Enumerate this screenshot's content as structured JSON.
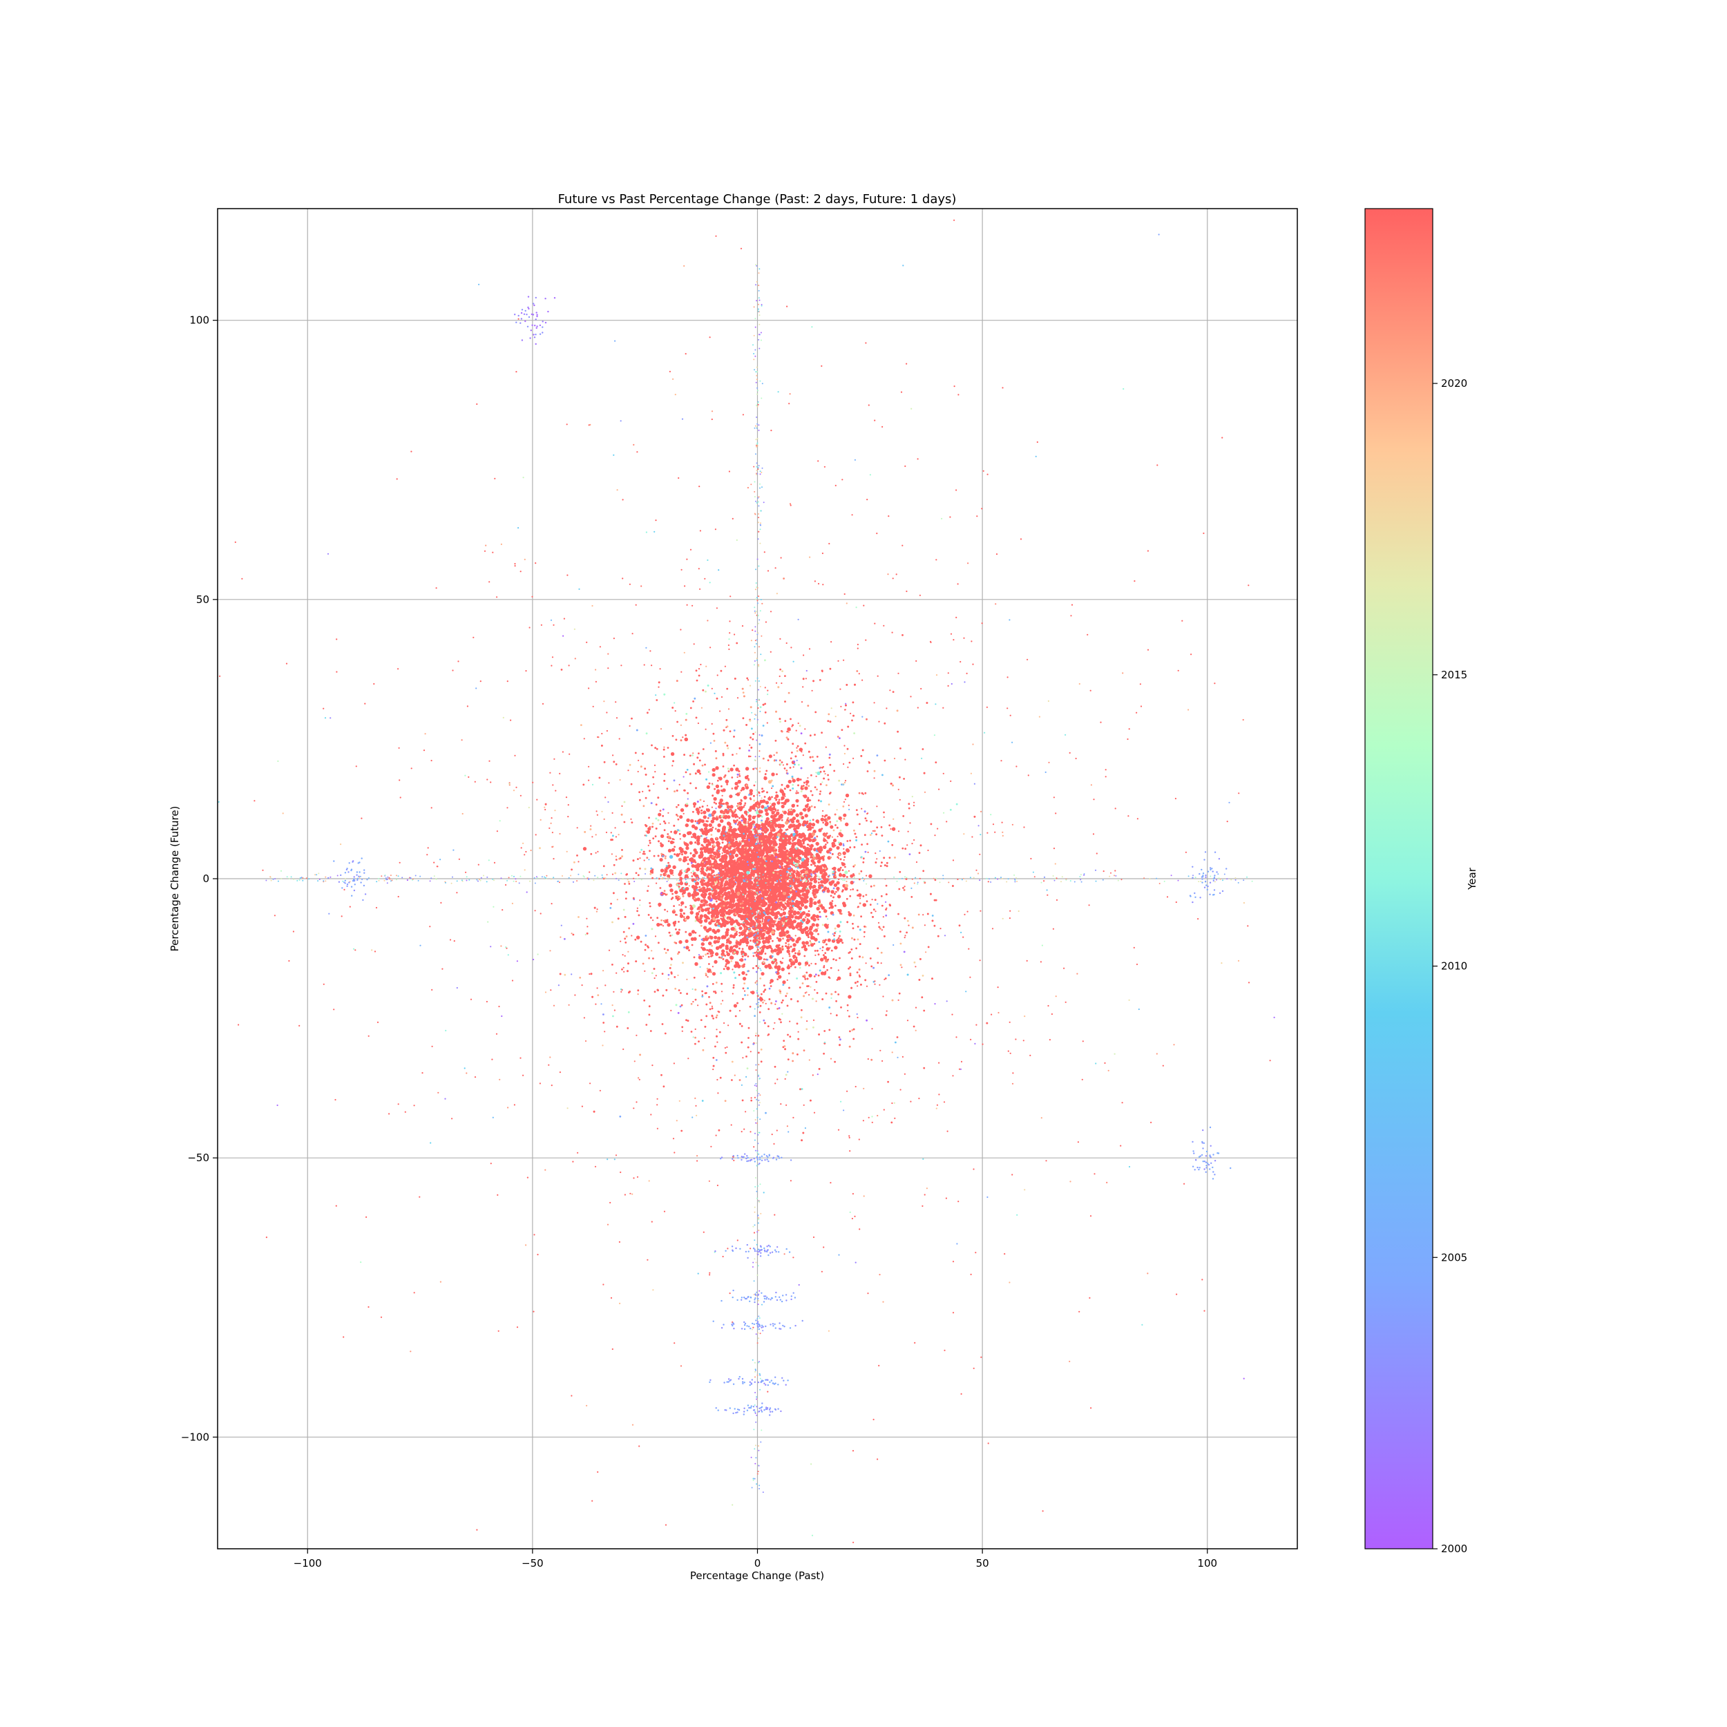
{
  "chart_data": {
    "type": "scatter",
    "title": "Future vs Past Percentage Change (Past: 2 days, Future: 1 days)",
    "xlabel": "Percentage Change (Past)",
    "ylabel": "Percentage Change (Future)",
    "xlim": [
      -120,
      120
    ],
    "ylim": [
      -120,
      120
    ],
    "xticks": [
      -100,
      -50,
      0,
      50,
      100
    ],
    "yticks": [
      -100,
      -50,
      0,
      50,
      100
    ],
    "xtick_labels": [
      "−100",
      "−50",
      "0",
      "50",
      "100"
    ],
    "ytick_labels": [
      "−100",
      "−50",
      "0",
      "50",
      "100"
    ],
    "grid": true,
    "colormap": "rainbow",
    "color_range": [
      2000,
      2023
    ],
    "colorbar": {
      "label": "Year",
      "ticks": [
        2000,
        2005,
        2010,
        2015,
        2020
      ],
      "tick_labels": [
        "2000",
        "2005",
        "2010",
        "2015",
        "2020"
      ]
    },
    "distribution": {
      "core_center": [
        0,
        0
      ],
      "core_spread_x": 8,
      "core_spread_y": 7,
      "dominant_year": 2023
    },
    "clusters": [
      {
        "x": -50,
        "y": 100,
        "year": 2002
      },
      {
        "x": 0,
        "y": -50,
        "year": 2004
      },
      {
        "x": 0,
        "y": -66.7,
        "year": 2004
      },
      {
        "x": 0,
        "y": -75,
        "year": 2004
      },
      {
        "x": 0,
        "y": -80,
        "year": 2004
      },
      {
        "x": 0,
        "y": -90,
        "year": 2004
      },
      {
        "x": 0,
        "y": -95,
        "year": 2004
      },
      {
        "x": 100,
        "y": 0,
        "year": 2004
      },
      {
        "x": 100,
        "y": -50,
        "year": 2004
      },
      {
        "x": -90,
        "y": 0,
        "year": 2004
      }
    ]
  }
}
